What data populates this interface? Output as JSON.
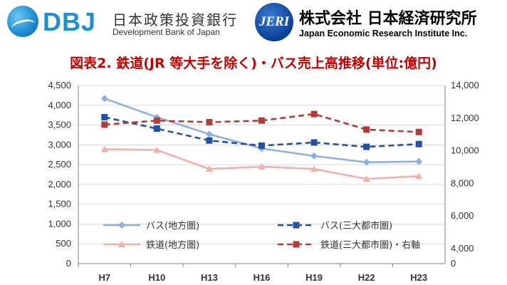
{
  "header": {
    "dbj_letters": "DBJ",
    "dbj_name_jp": "日本政策投資銀行",
    "dbj_name_en": "Development Bank of Japan",
    "jeri_mark": "JERI",
    "jeri_name_jp": "株式会社 日本経済研究所",
    "jeri_name_en": "Japan Economic Research Institute Inc."
  },
  "colors": {
    "title": "#c00000",
    "bus_local": "#8fb0de",
    "bus_metro": "#25509f",
    "rail_local": "#f0b0ac",
    "rail_metro": "#b23c3a"
  },
  "chart_data": {
    "type": "line",
    "title": "図表2. 鉄道(JR 等大手を除く)・バス売上高推移(単位:億円)",
    "categories": [
      "H7",
      "H10",
      "H13",
      "H16",
      "H19",
      "H22",
      "H23"
    ],
    "y_left": {
      "lim": [
        0,
        4500
      ],
      "ticks": [
        "0",
        "500",
        "1,000",
        "1,500",
        "2,000",
        "2,500",
        "3,000",
        "3,500",
        "4,000",
        "4,500"
      ]
    },
    "y_right": {
      "lim": [
        0,
        14000
      ],
      "ticks": [
        "0",
        "4,000",
        "6,000",
        "8,000",
        "10,000",
        "12,000",
        "14,000"
      ]
    },
    "grid": true,
    "legend_position": "bottom-inside",
    "series": [
      {
        "name": "バス(地方圏)",
        "axis": "left",
        "marker": "diamond",
        "dash": false,
        "values": [
          4170,
          3700,
          3270,
          2910,
          2720,
          2560,
          2580
        ]
      },
      {
        "name": "バス(三大都市圏)",
        "axis": "left",
        "marker": "square",
        "dash": true,
        "values": [
          3700,
          3410,
          3110,
          2980,
          3060,
          2950,
          3020
        ]
      },
      {
        "name": "鉄道(地方圏)",
        "axis": "left",
        "marker": "triangle",
        "dash": false,
        "values": [
          2890,
          2870,
          2390,
          2450,
          2390,
          2140,
          2210
        ]
      },
      {
        "name": "鉄道(三大都市圏)・右軸",
        "axis": "right",
        "marker": "square",
        "dash": true,
        "values": [
          11600,
          11850,
          11750,
          11850,
          12250,
          11300,
          11150
        ]
      }
    ]
  }
}
